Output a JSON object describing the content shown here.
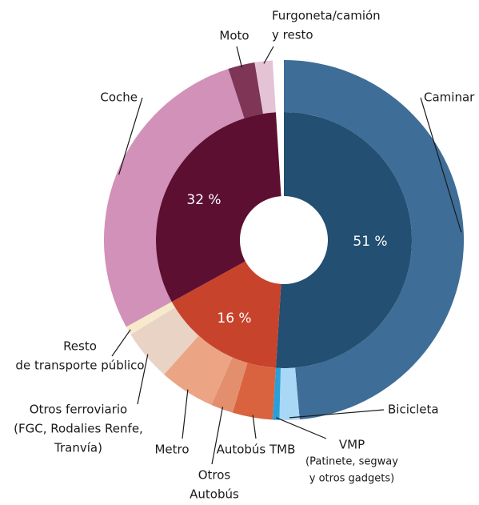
{
  "chart_data": {
    "type": "nested-donut",
    "inner": {
      "values": [
        51,
        16,
        32
      ],
      "value_labels": [
        "51 %",
        "16 %",
        "32 %"
      ],
      "colors": [
        "#234f72",
        "#c8432b",
        "#5c0f30"
      ]
    },
    "outer": {
      "categories": [
        [
          "Caminar"
        ],
        [
          "Bicicleta"
        ],
        [
          "VMP",
          "(Patinete, segway",
          "y otros gadgets)"
        ],
        [
          "Autobús TMB"
        ],
        [
          "Otros",
          "Autobús"
        ],
        [
          "Metro"
        ],
        [
          "Otros ferroviario",
          "(FGC, Rodalies Renfe,",
          "Tranvía)"
        ],
        [
          "Resto",
          "de transporte público"
        ],
        [
          "Coche"
        ],
        [
          "Moto"
        ],
        [
          "Furgoneta/camión",
          "y resto"
        ]
      ],
      "values": [
        48.6,
        1.8,
        0.6,
        3.6,
        2.0,
        5.0,
        4.6,
        0.8,
        28.0,
        2.4,
        1.6
      ],
      "colors": [
        "#3e6d97",
        "#a8d8f5",
        "#2a9fd8",
        "#d9633f",
        "#e38f6e",
        "#eba585",
        "#e9d3c4",
        "#f7e9cc",
        "#d291b8",
        "#7e3556",
        "#e3c3d4"
      ]
    }
  }
}
